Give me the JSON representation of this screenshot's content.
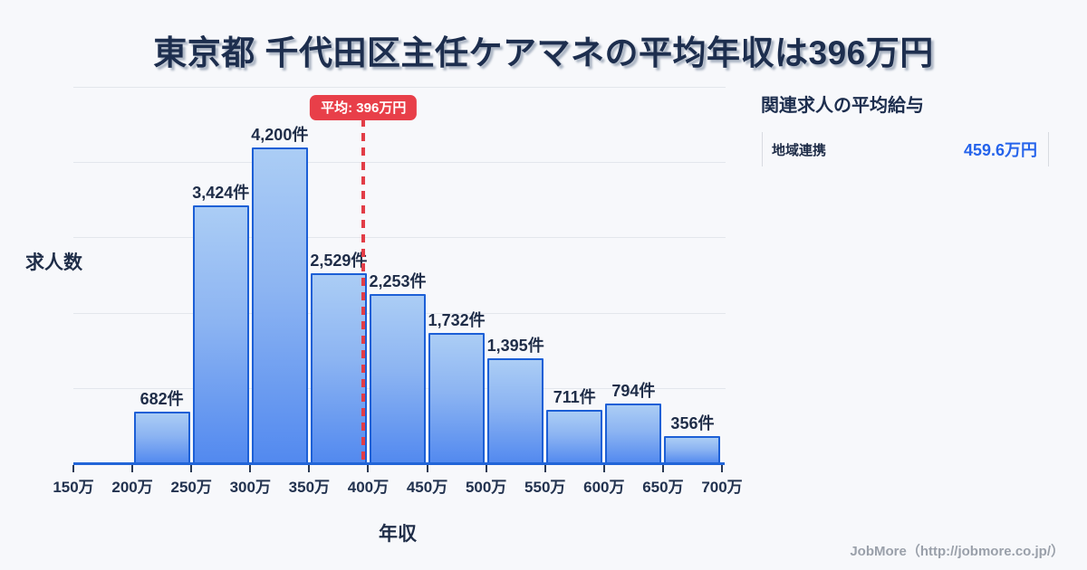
{
  "title": "東京都 千代田区主任ケアマネの平均年収は396万円",
  "chart_data": {
    "type": "bar",
    "title": "東京都 千代田区主任ケアマネの平均年収は396万円",
    "xlabel": "年収",
    "ylabel": "求人数",
    "bin_edge_labels": [
      "150万",
      "200万",
      "250万",
      "300万",
      "350万",
      "400万",
      "450万",
      "500万",
      "550万",
      "600万",
      "650万",
      "700万"
    ],
    "bin_edge_values": [
      150,
      200,
      250,
      300,
      350,
      400,
      450,
      500,
      550,
      600,
      650,
      700
    ],
    "values": [
      0,
      682,
      3424,
      4200,
      2529,
      2253,
      1732,
      1395,
      711,
      794,
      356
    ],
    "bar_labels": [
      "",
      "682件",
      "3,424件",
      "4,200件",
      "2,529件",
      "2,253件",
      "1,732件",
      "1,395件",
      "711件",
      "794件",
      "356件"
    ],
    "ylim": [
      0,
      5000
    ],
    "gridline_values": [
      1000,
      2000,
      3000,
      4000,
      5000
    ],
    "grid": true,
    "average": {
      "value": 396,
      "badge_label": "平均: 396万円"
    },
    "colors": {
      "bar_fill_top": "#abcdf5",
      "bar_fill_bottom": "#5289ef",
      "bar_border": "#1c5fd6",
      "average_red": "#e83f49",
      "axis_blue": "#2265d8",
      "text_navy": "#1f2d48",
      "gridline": "#e3e6ec",
      "background": "#f7f8fb"
    }
  },
  "side_panel": {
    "heading": "関連求人の平均給与",
    "rows": [
      {
        "label": "地域連携",
        "value": "459.6万円",
        "value_color": "#2563eb"
      }
    ]
  },
  "footer": {
    "credit": "JobMore（http://jobmore.co.jp/）"
  }
}
